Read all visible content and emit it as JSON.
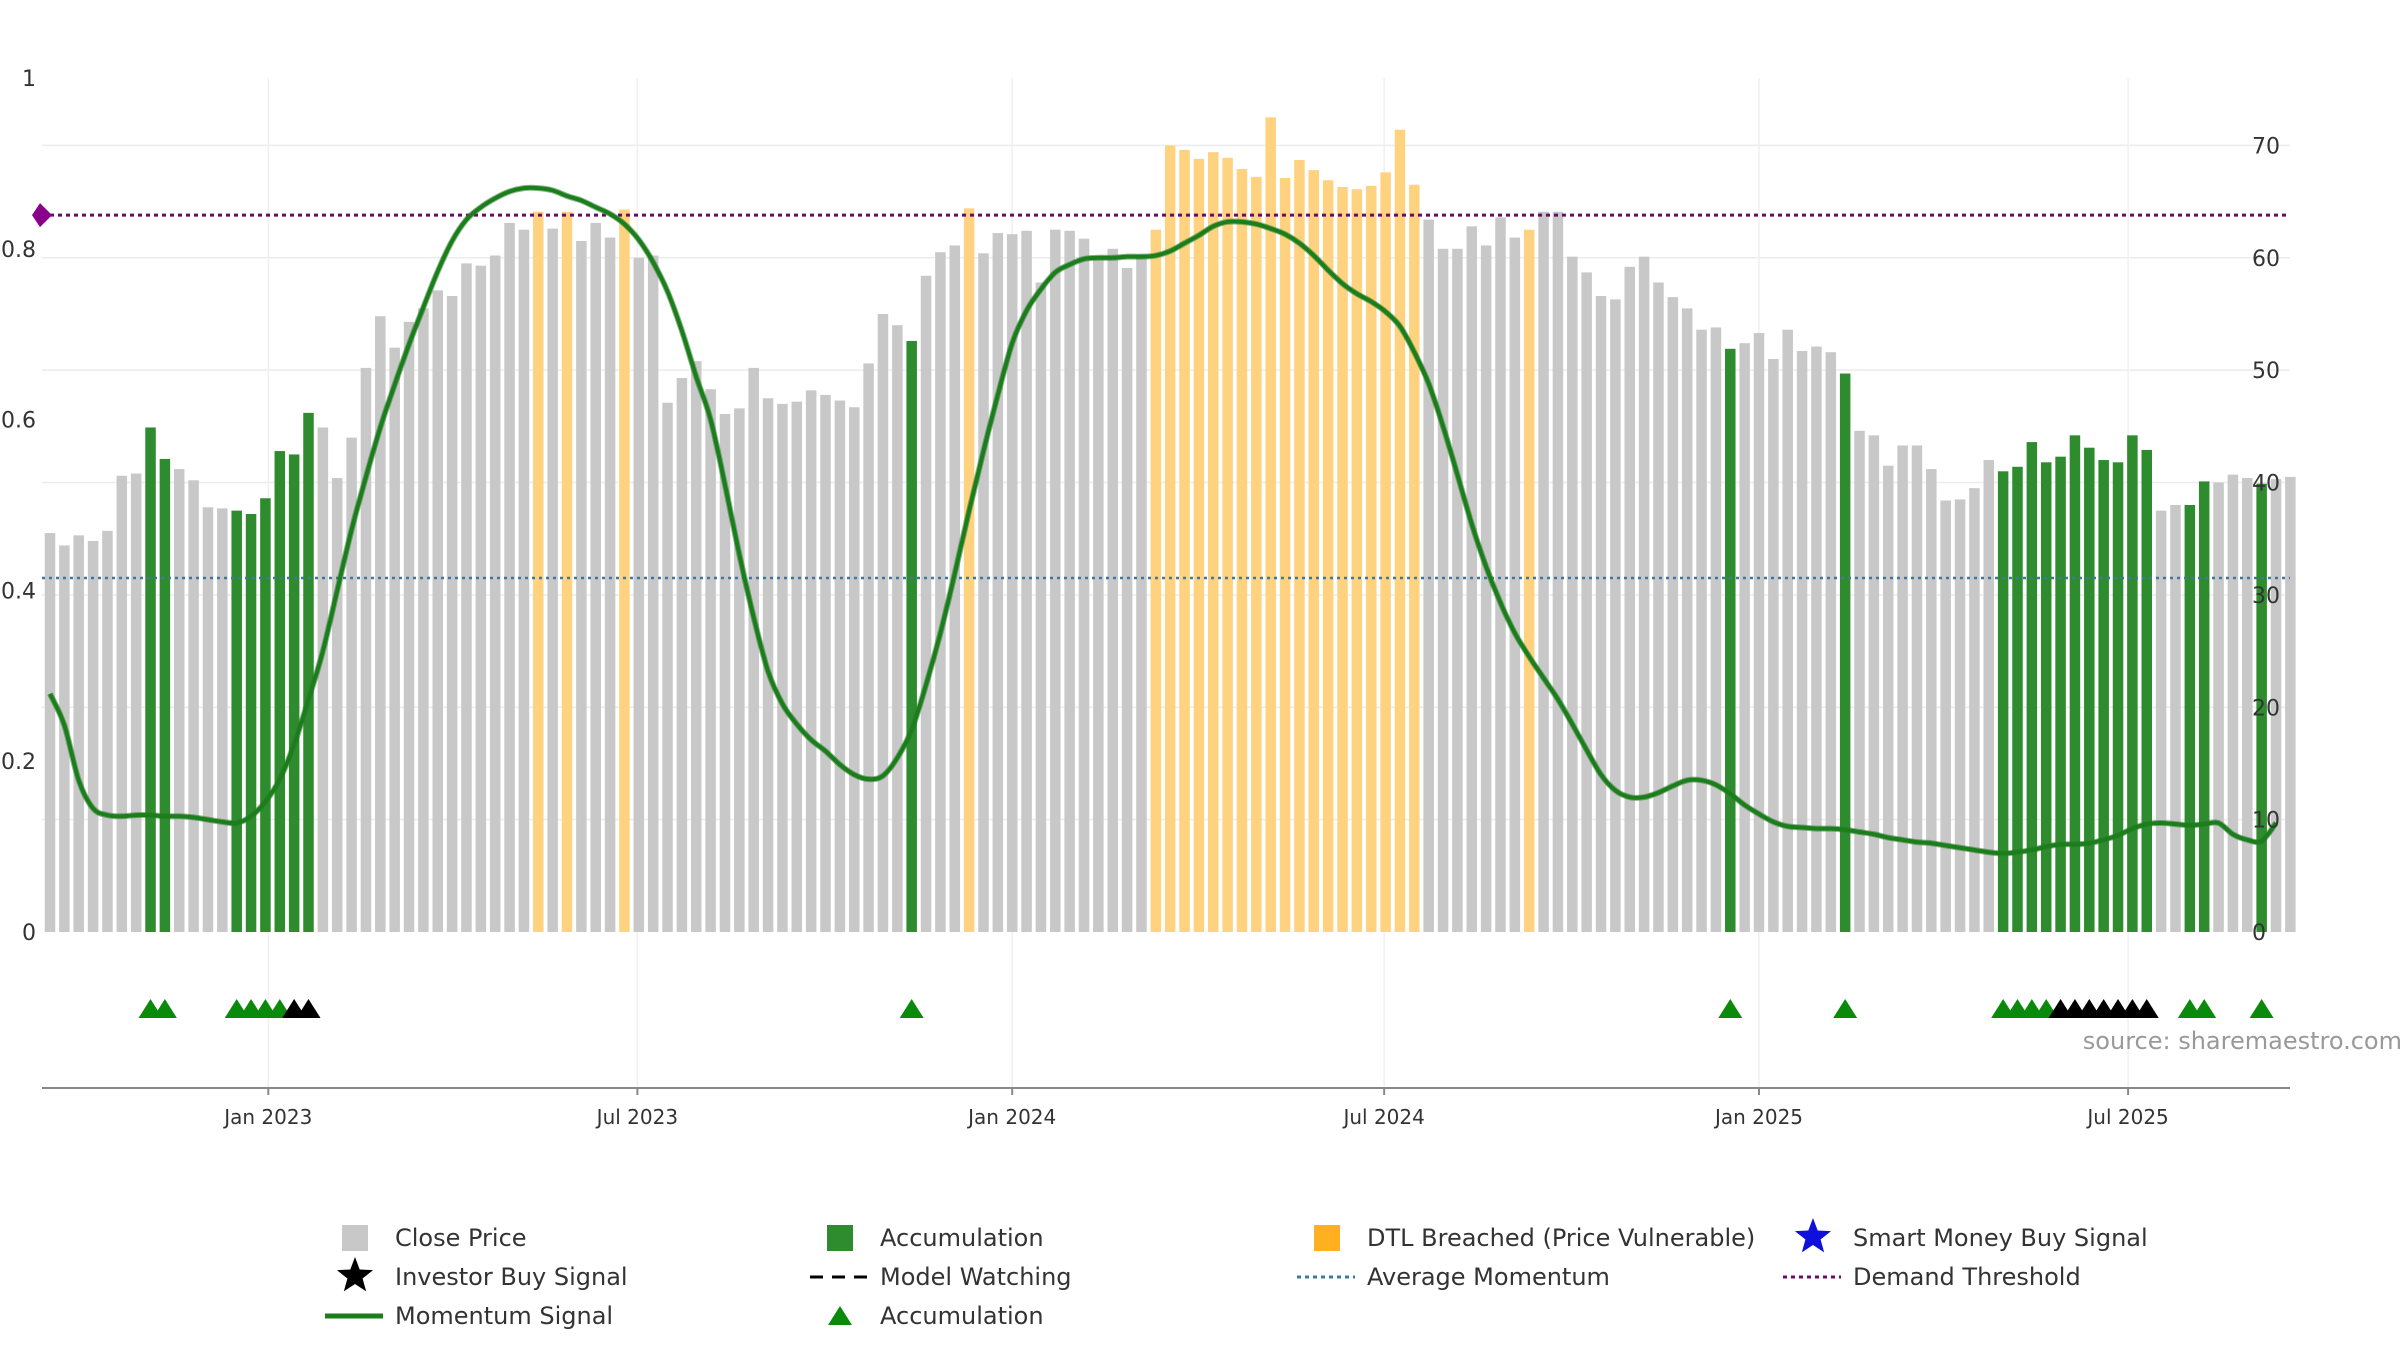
{
  "source_label": "source: sharemaestro.com",
  "chart_data": {
    "type": "bar",
    "title": "",
    "xlabel": "",
    "ylabel": "",
    "left_axis": {
      "range": [
        0,
        1
      ],
      "ticks": [
        0,
        0.2,
        0.4,
        0.6,
        0.8,
        1
      ],
      "tick_labels": [
        "0",
        "0.2",
        "0.4",
        "0.6",
        "0.8",
        "1"
      ]
    },
    "right_axis": {
      "range": [
        0,
        76
      ],
      "ticks": [
        0,
        10,
        20,
        30,
        40,
        50,
        60,
        70
      ],
      "tick_labels": [
        "0",
        "10",
        "20",
        "30",
        "40",
        "50",
        "60",
        "70"
      ]
    },
    "x_axis": {
      "start_week": 0,
      "end_week": 155,
      "date_ticks": [
        {
          "label": "Jan 2023",
          "week": 15.2
        },
        {
          "label": "Jul 2023",
          "week": 40.9
        },
        {
          "label": "Jan 2024",
          "week": 67.0
        },
        {
          "label": "Jul 2024",
          "week": 92.9
        },
        {
          "label": "Jan 2025",
          "week": 119.0
        },
        {
          "label": "Jul 2025",
          "week": 144.7
        }
      ]
    },
    "colors": {
      "close": "#c8c8c8",
      "accumulation": "#2e8b2e",
      "dtl": "#ffd280",
      "momentum": "#1a7f1a",
      "average_momentum": "#3c78a0",
      "demand_threshold": "#6a0a6a",
      "marker_accumulation": "#0a8a0a",
      "marker_investor": "#000000",
      "smart_money": "#1010dd"
    },
    "series": [
      {
        "name": "Close Price",
        "kind": "bar",
        "values": [
          35.5,
          34.4,
          35.3,
          34.8,
          35.7,
          40.6,
          40.8,
          44.9,
          42.1,
          41.2,
          40.2,
          37.8,
          37.7,
          37.5,
          37.2,
          38.6,
          42.8,
          42.5,
          46.2,
          44.9,
          40.4,
          44.0,
          50.2,
          54.8,
          52.0,
          54.3,
          55.5,
          57.1,
          56.6,
          59.5,
          59.3,
          60.2,
          63.1,
          62.5,
          64.1,
          62.6,
          64.1,
          61.5,
          63.1,
          61.8,
          64.3,
          60.0,
          60.2,
          47.1,
          49.3,
          50.8,
          48.3,
          46.1,
          46.6,
          50.2,
          47.5,
          47.0,
          47.2,
          48.2,
          47.8,
          47.3,
          46.7,
          50.6,
          55.0,
          54.0,
          52.6,
          58.4,
          60.5,
          61.1,
          64.4,
          60.4,
          62.2,
          62.1,
          62.4,
          57.8,
          62.5,
          62.4,
          61.7,
          60.1,
          60.8,
          59.1,
          60.3,
          62.5,
          70.0,
          69.6,
          68.8,
          69.4,
          68.9,
          67.9,
          67.2,
          72.5,
          67.1,
          68.7,
          67.8,
          66.9,
          66.3,
          66.1,
          66.4,
          67.6,
          71.4,
          66.5,
          63.4,
          60.8,
          60.8,
          62.8,
          61.1,
          63.6,
          61.8,
          62.5,
          64.1,
          64.1,
          60.1,
          58.7,
          56.6,
          56.3,
          59.2,
          60.1,
          57.8,
          56.5,
          55.5,
          53.6,
          53.8,
          51.9,
          52.4,
          53.3,
          51.0,
          53.6,
          51.7,
          52.1,
          51.6,
          49.7,
          44.6,
          44.2,
          41.5,
          43.3,
          43.3,
          41.2,
          38.4,
          38.5,
          39.5,
          42.0,
          41.0,
          41.4,
          43.6,
          41.8,
          42.3,
          44.2,
          43.1,
          42.0,
          41.8,
          44.2,
          42.9,
          37.5,
          38.0,
          38.0,
          40.1,
          40.0,
          40.7,
          40.4,
          39.9,
          40.3,
          40.5
        ]
      },
      {
        "name": "Accumulation",
        "kind": "bar-highlight",
        "weeks": [
          7,
          8,
          13,
          14,
          15,
          16,
          17,
          18,
          60,
          117,
          125,
          136,
          137,
          138,
          139,
          140,
          141,
          142,
          143,
          144,
          145,
          146,
          149,
          150,
          154
        ]
      },
      {
        "name": "DTL Breached (Price Vulnerable)",
        "kind": "bar-highlight",
        "weeks": [
          34,
          36,
          40,
          64,
          77,
          78,
          79,
          80,
          81,
          82,
          83,
          84,
          85,
          86,
          87,
          88,
          89,
          90,
          91,
          92,
          93,
          94,
          95,
          103
        ]
      },
      {
        "name": "Momentum Signal",
        "kind": "line",
        "points": [
          [
            0,
            21.2
          ],
          [
            1,
            18.4
          ],
          [
            2,
            13.5
          ],
          [
            3,
            11.0
          ],
          [
            4,
            10.4
          ],
          [
            5,
            10.3
          ],
          [
            6,
            10.4
          ],
          [
            7,
            10.4
          ],
          [
            8,
            10.3
          ],
          [
            9,
            10.3
          ],
          [
            10,
            10.2
          ],
          [
            11,
            10.0
          ],
          [
            12,
            9.8
          ],
          [
            13,
            9.7
          ],
          [
            14,
            10.3
          ],
          [
            15,
            11.6
          ],
          [
            16,
            13.6
          ],
          [
            17,
            16.7
          ],
          [
            18,
            20.7
          ],
          [
            19,
            25.0
          ],
          [
            20,
            30.4
          ],
          [
            21,
            35.8
          ],
          [
            22,
            40.5
          ],
          [
            23,
            44.9
          ],
          [
            24,
            48.7
          ],
          [
            25,
            52.3
          ],
          [
            26,
            55.6
          ],
          [
            27,
            58.8
          ],
          [
            28,
            61.5
          ],
          [
            29,
            63.4
          ],
          [
            30,
            64.5
          ],
          [
            31,
            65.3
          ],
          [
            32,
            65.9
          ],
          [
            33,
            66.2
          ],
          [
            34,
            66.2
          ],
          [
            35,
            66.0
          ],
          [
            36,
            65.5
          ],
          [
            37,
            65.1
          ],
          [
            38,
            64.5
          ],
          [
            39,
            63.9
          ],
          [
            40,
            63.0
          ],
          [
            41,
            61.6
          ],
          [
            42,
            59.6
          ],
          [
            43,
            57.0
          ],
          [
            44,
            53.5
          ],
          [
            45,
            49.4
          ],
          [
            46,
            45.6
          ],
          [
            47,
            39.8
          ],
          [
            48,
            33.6
          ],
          [
            49,
            28.0
          ],
          [
            50,
            23.2
          ],
          [
            51,
            20.3
          ],
          [
            52,
            18.5
          ],
          [
            53,
            17.1
          ],
          [
            54,
            16.1
          ],
          [
            55,
            14.9
          ],
          [
            56,
            14.0
          ],
          [
            57,
            13.6
          ],
          [
            58,
            13.9
          ],
          [
            59,
            15.5
          ],
          [
            60,
            18.0
          ],
          [
            61,
            22.0
          ],
          [
            62,
            26.6
          ],
          [
            63,
            31.9
          ],
          [
            64,
            37.5
          ],
          [
            65,
            42.8
          ],
          [
            66,
            47.8
          ],
          [
            67,
            52.4
          ],
          [
            68,
            55.3
          ],
          [
            69,
            57.2
          ],
          [
            70,
            58.7
          ],
          [
            71,
            59.4
          ],
          [
            72,
            59.9
          ],
          [
            73,
            60.0
          ],
          [
            74,
            60.0
          ],
          [
            75,
            60.1
          ],
          [
            76,
            60.1
          ],
          [
            77,
            60.2
          ],
          [
            78,
            60.6
          ],
          [
            79,
            61.3
          ],
          [
            80,
            62.0
          ],
          [
            81,
            62.8
          ],
          [
            82,
            63.2
          ],
          [
            83,
            63.2
          ],
          [
            84,
            63.0
          ],
          [
            85,
            62.6
          ],
          [
            86,
            62.1
          ],
          [
            87,
            61.3
          ],
          [
            88,
            60.2
          ],
          [
            89,
            58.9
          ],
          [
            90,
            57.7
          ],
          [
            91,
            56.8
          ],
          [
            92,
            56.1
          ],
          [
            93,
            55.2
          ],
          [
            94,
            53.9
          ],
          [
            95,
            51.6
          ],
          [
            96,
            48.8
          ],
          [
            97,
            45.0
          ],
          [
            98,
            40.7
          ],
          [
            99,
            36.3
          ],
          [
            100,
            32.5
          ],
          [
            101,
            29.3
          ],
          [
            102,
            26.6
          ],
          [
            103,
            24.5
          ],
          [
            104,
            22.6
          ],
          [
            105,
            20.7
          ],
          [
            106,
            18.5
          ],
          [
            107,
            16.2
          ],
          [
            108,
            14.0
          ],
          [
            109,
            12.6
          ],
          [
            110,
            12.0
          ],
          [
            111,
            12.0
          ],
          [
            112,
            12.4
          ],
          [
            113,
            13.0
          ],
          [
            114,
            13.5
          ],
          [
            115,
            13.5
          ],
          [
            116,
            13.1
          ],
          [
            117,
            12.3
          ],
          [
            118,
            11.3
          ],
          [
            119,
            10.5
          ],
          [
            120,
            9.8
          ],
          [
            121,
            9.4
          ],
          [
            122,
            9.3
          ],
          [
            123,
            9.2
          ],
          [
            124,
            9.2
          ],
          [
            125,
            9.1
          ],
          [
            126,
            8.9
          ],
          [
            127,
            8.7
          ],
          [
            128,
            8.4
          ],
          [
            129,
            8.2
          ],
          [
            130,
            8.0
          ],
          [
            131,
            7.9
          ],
          [
            132,
            7.7
          ],
          [
            133,
            7.5
          ],
          [
            134,
            7.3
          ],
          [
            135,
            7.1
          ],
          [
            136,
            7.0
          ],
          [
            137,
            7.1
          ],
          [
            138,
            7.3
          ],
          [
            139,
            7.6
          ],
          [
            140,
            7.8
          ],
          [
            141,
            7.8
          ],
          [
            142,
            7.9
          ],
          [
            143,
            8.2
          ],
          [
            144,
            8.6
          ],
          [
            145,
            9.2
          ],
          [
            146,
            9.6
          ],
          [
            147,
            9.7
          ],
          [
            148,
            9.6
          ],
          [
            149,
            9.5
          ],
          [
            150,
            9.6
          ],
          [
            151,
            9.7
          ],
          [
            152,
            8.7
          ],
          [
            153,
            8.2
          ],
          [
            154,
            8.1
          ],
          [
            155,
            9.7
          ]
        ]
      },
      {
        "name": "Average Momentum",
        "kind": "hline",
        "value": 31.5
      },
      {
        "name": "Demand Threshold",
        "kind": "hline",
        "value": 63.8
      },
      {
        "name": "Accumulation",
        "kind": "marker-triangle",
        "weeks": [
          7,
          8,
          13,
          14,
          15,
          16,
          117,
          125,
          136,
          137,
          138,
          139,
          149,
          150,
          154,
          60
        ]
      },
      {
        "name": "Investor Buy Signal",
        "kind": "marker-triangle",
        "weeks": [
          17,
          18,
          140,
          141,
          142,
          143,
          144,
          145,
          146
        ]
      }
    ],
    "legend": {
      "position": "bottom",
      "entries": [
        {
          "label": "Close Price",
          "symbol": "square-grey"
        },
        {
          "label": "Accumulation",
          "symbol": "square-green"
        },
        {
          "label": "DTL Breached (Price Vulnerable)",
          "symbol": "square-orange"
        },
        {
          "label": "Smart Money Buy Signal",
          "symbol": "star-blue"
        },
        {
          "label": "Investor Buy Signal",
          "symbol": "star-black"
        },
        {
          "label": "Model Watching",
          "symbol": "dash-black"
        },
        {
          "label": "Average Momentum",
          "symbol": "dot-blue"
        },
        {
          "label": "Demand Threshold",
          "symbol": "dot-purple"
        },
        {
          "label": "Momentum Signal",
          "symbol": "line-green"
        },
        {
          "label": "Accumulation",
          "symbol": "triangle-green"
        }
      ]
    }
  }
}
